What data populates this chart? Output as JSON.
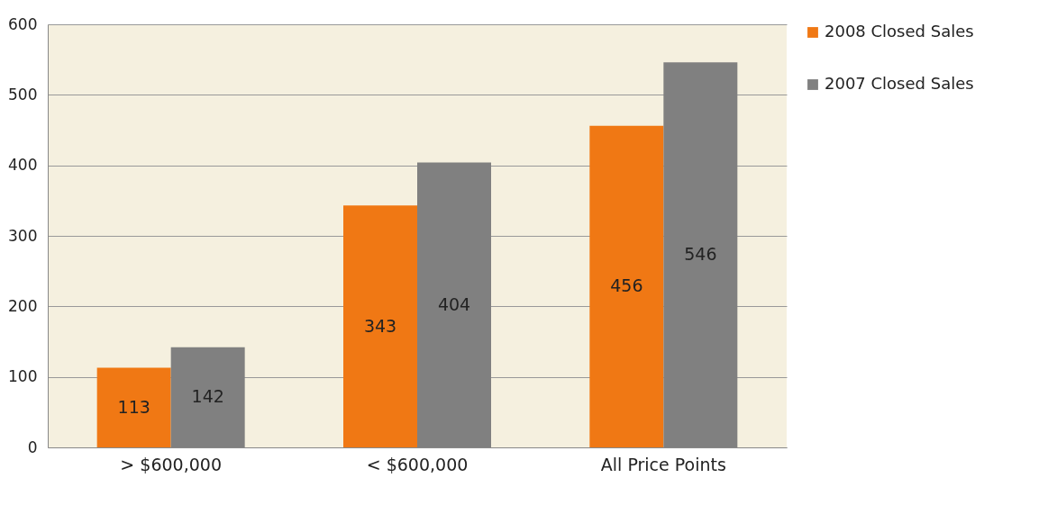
{
  "chart_data": {
    "type": "bar",
    "categories": [
      "> $600,000",
      "< $600,000",
      "All Price Points"
    ],
    "series": [
      {
        "name": "2008 Closed Sales",
        "color": "#f07814",
        "values": [
          113,
          343,
          456
        ]
      },
      {
        "name": "2007 Closed Sales",
        "color": "#808080",
        "values": [
          142,
          404,
          546
        ]
      }
    ],
    "ylim": [
      0,
      600
    ],
    "yticks": [
      0,
      100,
      200,
      300,
      400,
      500,
      600
    ],
    "grid": "y",
    "legend": "right",
    "data_labels": true
  }
}
